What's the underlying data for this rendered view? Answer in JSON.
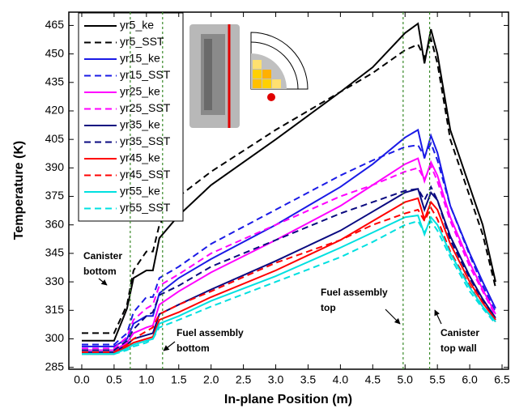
{
  "chart_data": {
    "type": "line",
    "xlabel": "In-plane Position (m)",
    "ylabel": "Temperature (K)",
    "x": [
      0,
      0.5,
      0.7,
      0.8,
      1.0,
      1.1,
      1.2,
      1.5,
      2.0,
      3.0,
      4.0,
      4.5,
      5.0,
      5.2,
      5.3,
      5.4,
      5.5,
      5.7,
      6.0,
      6.2,
      6.4
    ],
    "series": [
      {
        "name": "yr5_ke",
        "color": "#000000",
        "dash": false,
        "values": [
          299,
          299,
          316,
          332,
          336,
          336,
          353,
          365,
          381,
          405,
          430,
          443,
          461,
          466,
          445,
          463,
          450,
          410,
          380,
          360,
          330
        ]
      },
      {
        "name": "yr5_SST",
        "color": "#000000",
        "dash": true,
        "values": [
          303,
          303,
          318,
          336,
          346,
          346,
          360,
          375,
          388,
          410,
          430,
          440,
          452,
          455,
          448,
          458,
          445,
          405,
          375,
          355,
          327
        ]
      },
      {
        "name": "yr15_ke",
        "color": "#1a1ae6",
        "dash": false,
        "values": [
          296,
          296,
          300,
          308,
          312,
          312,
          324,
          332,
          342,
          360,
          380,
          392,
          406,
          410,
          395,
          407,
          398,
          370,
          345,
          330,
          316
        ]
      },
      {
        "name": "yr15_SST",
        "color": "#1a1ae6",
        "dash": true,
        "values": [
          297,
          297,
          303,
          314,
          322,
          322,
          332,
          338,
          350,
          368,
          386,
          394,
          401,
          402,
          396,
          403,
          394,
          370,
          344,
          328,
          314
        ]
      },
      {
        "name": "yr25_ke",
        "color": "#ff00ff",
        "dash": false,
        "values": [
          294,
          294,
          298,
          303,
          306,
          307,
          318,
          325,
          335,
          352,
          370,
          381,
          392,
          395,
          383,
          393,
          386,
          364,
          340,
          326,
          313
        ]
      },
      {
        "name": "yr25_SST",
        "color": "#ff00ff",
        "dash": true,
        "values": [
          295,
          295,
          301,
          310,
          316,
          318,
          328,
          334,
          345,
          360,
          375,
          381,
          388,
          390,
          384,
          391,
          383,
          362,
          338,
          325,
          312
        ]
      },
      {
        "name": "yr35_ke",
        "color": "#0a0a80",
        "dash": false,
        "values": [
          293,
          293,
          297,
          300,
          302,
          303,
          313,
          318,
          326,
          341,
          357,
          367,
          377,
          379,
          368,
          377,
          373,
          354,
          333,
          321,
          311
        ]
      },
      {
        "name": "yr35_SST",
        "color": "#0a0a80",
        "dash": true,
        "values": [
          294,
          294,
          299,
          305,
          312,
          314,
          323,
          328,
          338,
          352,
          366,
          372,
          378,
          379,
          373,
          380,
          373,
          352,
          332,
          320,
          310
        ]
      },
      {
        "name": "yr45_ke",
        "color": "#ff0000",
        "dash": false,
        "values": [
          292,
          292,
          296,
          298,
          300,
          301,
          310,
          314,
          322,
          336,
          352,
          362,
          372,
          374,
          363,
          372,
          368,
          350,
          330,
          319,
          310
        ]
      },
      {
        "name": "yr45_SST",
        "color": "#ff0000",
        "dash": true,
        "values": [
          293,
          293,
          297,
          300,
          304,
          306,
          313,
          318,
          325,
          340,
          352,
          360,
          366,
          368,
          362,
          369,
          363,
          346,
          328,
          317,
          309
        ]
      },
      {
        "name": "yr55_ke",
        "color": "#00e0e0",
        "dash": false,
        "values": [
          292,
          292,
          295,
          297,
          299,
          300,
          308,
          312,
          320,
          333,
          348,
          356,
          364,
          365,
          355,
          364,
          360,
          345,
          327,
          317,
          309
        ]
      },
      {
        "name": "yr55_SST",
        "color": "#00e0e0",
        "dash": true,
        "values": [
          292,
          292,
          294,
          296,
          298,
          300,
          306,
          310,
          317,
          330,
          343,
          351,
          360,
          362,
          356,
          362,
          357,
          343,
          325,
          316,
          308
        ]
      }
    ],
    "reference_lines": [
      0.75,
      1.25,
      4.97,
      5.38
    ],
    "annotations": [
      [
        "Canister",
        "bottom"
      ],
      [
        "Fuel assembly",
        "bottom"
      ],
      [
        "Fuel assembly",
        "top"
      ],
      [
        "Canister",
        "top wall"
      ]
    ],
    "xlim": [
      -0.2,
      6.6
    ],
    "ylim": [
      284,
      472
    ],
    "xticks": [
      {
        "value": 0,
        "label": "0.0"
      },
      0.5,
      {
        "value": 1,
        "label": "1.0"
      },
      1.5,
      {
        "value": 2,
        "label": "2.0"
      },
      2.5,
      {
        "value": 3,
        "label": "3.0"
      },
      3.5,
      {
        "value": 4,
        "label": "4.0"
      },
      4.5,
      {
        "value": 5,
        "label": "5.0"
      },
      5.5,
      {
        "value": 6,
        "label": "6.0"
      },
      6.5
    ],
    "yticks": [
      285,
      300,
      315,
      330,
      345,
      360,
      375,
      390,
      405,
      420,
      435,
      450,
      465
    ],
    "legend": "upper left"
  }
}
